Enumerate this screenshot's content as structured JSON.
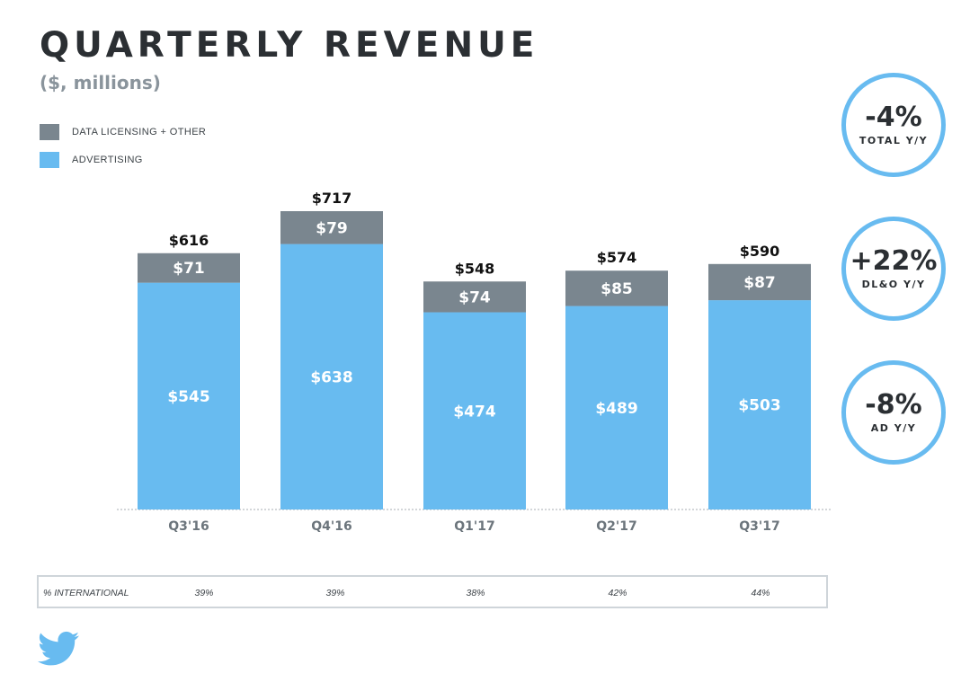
{
  "chart_data": {
    "type": "bar",
    "stacked": true,
    "title": "QUARTERLY REVENUE",
    "subtitle": "($, millions)",
    "categories": [
      "Q3'16",
      "Q4'16",
      "Q1'17",
      "Q2'17",
      "Q3'17"
    ],
    "series": [
      {
        "name": "ADVERTISING",
        "values": [
          545,
          638,
          474,
          489,
          503
        ],
        "labels": [
          "$545",
          "$638",
          "$474",
          "$489",
          "$503"
        ],
        "color": "#68bbf0"
      },
      {
        "name": "DATA LICENSING + OTHER",
        "values": [
          71,
          79,
          74,
          85,
          87
        ],
        "labels": [
          "$71",
          "$79",
          "$74",
          "$85",
          "$87"
        ],
        "color": "#7a868f"
      }
    ],
    "totals": [
      616,
      717,
      548,
      574,
      590
    ],
    "total_labels": [
      "$616",
      "$717",
      "$548",
      "$574",
      "$590"
    ],
    "legend_position": "top-left",
    "ylim": [
      0,
      717
    ]
  },
  "international": {
    "label": "% INTERNATIONAL",
    "values": [
      "39%",
      "39%",
      "38%",
      "42%",
      "44%"
    ]
  },
  "kpis": [
    {
      "value": "-4%",
      "label": "TOTAL Y/Y"
    },
    {
      "value": "+22%",
      "label": "DL&O Y/Y"
    },
    {
      "value": "-8%",
      "label": "AD Y/Y"
    }
  ],
  "colors": {
    "accent": "#68bbf0",
    "secondary": "#7a868f",
    "text": "#2b2f33"
  },
  "icons": {
    "brand": "twitter-bird-icon"
  }
}
